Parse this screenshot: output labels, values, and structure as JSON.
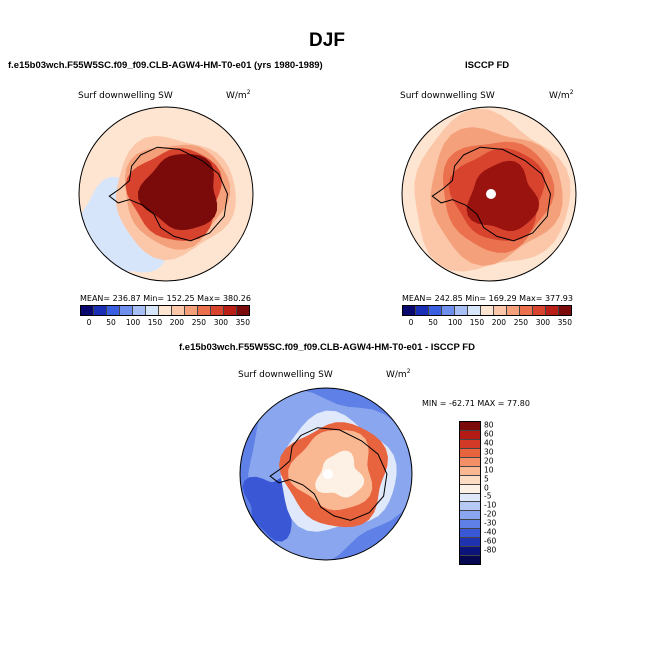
{
  "main_title": "DJF",
  "panels": [
    {
      "title": "f.e15b03wch.F55W5SC.f09_f09.CLB-AGW4-HM-T0-e01 (yrs 1980-1989)",
      "var_label": "Surf downwelling SW",
      "units": "W/m",
      "units_sup": "2",
      "stats": "MEAN= 236.87   Min= 152.25   Max= 380.26",
      "colorbar": {
        "ticks": [
          "0",
          "50",
          "100",
          "150",
          "200",
          "250",
          "300",
          "350"
        ],
        "colors": [
          "#08086e",
          "#1a2fb5",
          "#3a5fe0",
          "#6f8fef",
          "#a8bff5",
          "#d7e5fb",
          "#fde5d2",
          "#fbc7a8",
          "#f4a07a",
          "#ea704e",
          "#d8432e",
          "#b91f17",
          "#7b0a0a"
        ]
      }
    },
    {
      "title": "ISCCP FD",
      "var_label": "Surf downwelling SW",
      "units": "W/m",
      "units_sup": "2",
      "stats": "MEAN= 242.85   Min= 169.29   Max= 377.93",
      "colorbar": {
        "ticks": [
          "0",
          "50",
          "100",
          "150",
          "200",
          "250",
          "300",
          "350"
        ],
        "colors": [
          "#08086e",
          "#1a2fb5",
          "#3a5fe0",
          "#6f8fef",
          "#a8bff5",
          "#d7e5fb",
          "#fde5d2",
          "#fbc7a8",
          "#f4a07a",
          "#ea704e",
          "#d8432e",
          "#b91f17",
          "#7b0a0a"
        ]
      }
    },
    {
      "title": "f.e15b03wch.F55W5SC.f09_f09.CLB-AGW4-HM-T0-e01 - ISCCP FD",
      "var_label": "Surf downwelling SW",
      "units": "W/m",
      "units_sup": "2",
      "stats": "MIN = -62.71  MAX =  77.80",
      "colorbar": {
        "ticks": [
          "80",
          "60",
          "40",
          "30",
          "20",
          "10",
          "5",
          "0",
          "-5",
          "-10",
          "-20",
          "-30",
          "-40",
          "-60",
          "-80"
        ],
        "colors": [
          "#7b0a0a",
          "#b31b14",
          "#d23a27",
          "#e8643f",
          "#f38f66",
          "#f9b892",
          "#fddcc4",
          "#fdf1e6",
          "#dfe9fb",
          "#b5c9f4",
          "#8aa6ee",
          "#5f80e6",
          "#3a57d6",
          "#1f33b0",
          "#0c137a",
          "#050850"
        ]
      }
    }
  ]
}
